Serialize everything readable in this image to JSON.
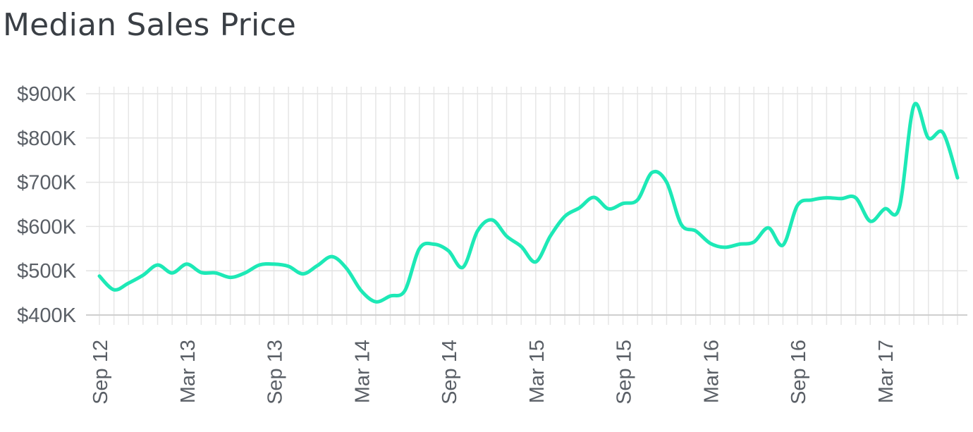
{
  "title": "Median Sales Price",
  "chart_data": {
    "type": "line",
    "title": "Median Sales Price",
    "xlabel": "",
    "ylabel": "",
    "ylim": [
      400000,
      900000
    ],
    "y_ticks": [
      400000,
      500000,
      600000,
      700000,
      800000,
      900000
    ],
    "y_tick_labels": [
      "$400K",
      "$500K",
      "$600K",
      "$700K",
      "$800K",
      "$900K"
    ],
    "x_tick_labels": [
      "Sep 12",
      "Mar 13",
      "Sep 13",
      "Mar 14",
      "Sep 14",
      "Mar 15",
      "Sep 15",
      "Mar 16",
      "Sep 16",
      "Mar 17"
    ],
    "x_tick_indices": [
      0,
      6,
      12,
      18,
      24,
      30,
      36,
      42,
      48,
      54
    ],
    "grid": true,
    "legend": "none",
    "line_color": "#1de9b6",
    "series": [
      {
        "x": [
          "Sep 12",
          "Oct 12",
          "Nov 12",
          "Dec 12",
          "Jan 13",
          "Feb 13",
          "Mar 13",
          "Apr 13",
          "May 13",
          "Jun 13",
          "Jul 13",
          "Aug 13",
          "Sep 13",
          "Oct 13",
          "Nov 13",
          "Dec 13",
          "Jan 14",
          "Feb 14",
          "Mar 14",
          "Apr 14",
          "May 14",
          "Jun 14",
          "Jul 14",
          "Aug 14",
          "Sep 14",
          "Oct 14",
          "Nov 14",
          "Dec 14",
          "Jan 15",
          "Feb 15",
          "Mar 15",
          "Apr 15",
          "May 15",
          "Jun 15",
          "Jul 15",
          "Aug 15",
          "Sep 15",
          "Oct 15",
          "Nov 15",
          "Dec 15",
          "Jan 16",
          "Feb 16",
          "Mar 16",
          "Apr 16",
          "May 16",
          "Jun 16",
          "Jul 16",
          "Aug 16",
          "Sep 16",
          "Oct 16",
          "Nov 16",
          "Dec 16",
          "Jan 17",
          "Feb 17",
          "Mar 17",
          "Apr 17",
          "May 17",
          "Jun 17",
          "Jul 17",
          "Aug 17"
        ],
        "values": [
          488000,
          457000,
          472000,
          490000,
          513000,
          495000,
          515000,
          496000,
          495000,
          485000,
          495000,
          513000,
          515000,
          510000,
          493000,
          512000,
          532000,
          505000,
          455000,
          430000,
          443000,
          455000,
          550000,
          560000,
          545000,
          508000,
          590000,
          615000,
          578000,
          555000,
          520000,
          578000,
          623000,
          642000,
          666000,
          640000,
          652000,
          660000,
          722000,
          700000,
          605000,
          590000,
          562000,
          553000,
          560000,
          565000,
          597000,
          558000,
          648000,
          660000,
          665000,
          663000,
          665000,
          612000,
          640000,
          643000,
          873000,
          800000,
          812000,
          710000
        ]
      }
    ]
  }
}
